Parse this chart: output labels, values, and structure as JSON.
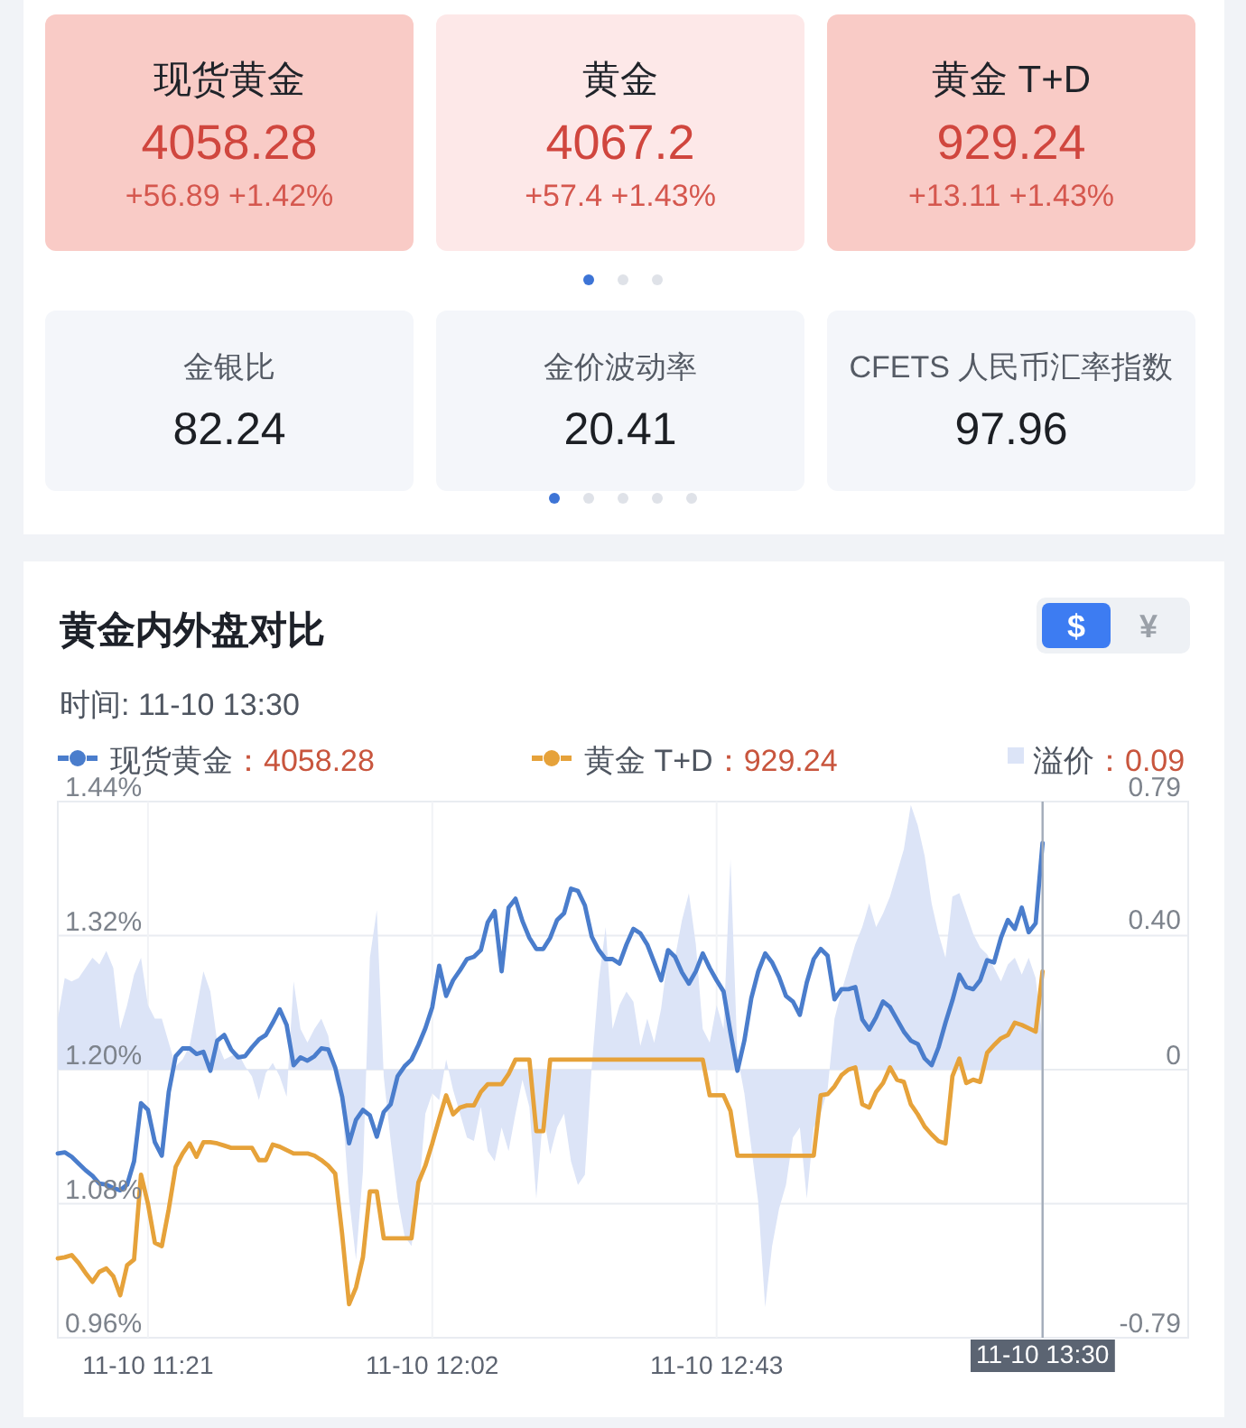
{
  "chart_data": [
    {
      "type": "other",
      "categories": [
        "现货黄金",
        "黄金",
        "黄金 T+D",
        "金银比",
        "金价波动率",
        "CFETS 人民币汇率指数"
      ],
      "values": [
        4058.28,
        4067.2,
        929.24,
        82.24,
        20.41,
        97.96
      ],
      "colors": [
        "#f9cbc6",
        "#fde8e8",
        "#f9cbc6",
        "#f4f6fa",
        "#f4f6fa",
        "#f4f6fa"
      ],
      "data_labels": true,
      "annotations": [
        "+56.89 +1.42%",
        "+57.4 +1.43%",
        "+13.11 +1.43%"
      ]
    },
    {
      "type": "line",
      "title": "黄金内外盘对比",
      "subtitle": "时间: 11-10 13:30",
      "legend": "top",
      "grid": true,
      "categories": [
        null,
        null,
        null,
        null,
        null,
        null,
        null,
        null,
        null,
        null,
        null,
        null,
        null,
        "11-10 11:21",
        null,
        null,
        null,
        null,
        null,
        null,
        null,
        null,
        null,
        null,
        null,
        null,
        null,
        null,
        null,
        null,
        null,
        null,
        null,
        null,
        null,
        null,
        null,
        null,
        null,
        null,
        null,
        null,
        null,
        null,
        null,
        null,
        null,
        null,
        null,
        null,
        null,
        null,
        null,
        null,
        "11-10 12:02",
        null,
        null,
        null,
        null,
        null,
        null,
        null,
        null,
        null,
        null,
        null,
        null,
        null,
        null,
        null,
        null,
        null,
        null,
        null,
        null,
        null,
        null,
        null,
        null,
        null,
        null,
        null,
        null,
        null,
        null,
        null,
        null,
        null,
        null,
        null,
        null,
        null,
        null,
        null,
        null,
        "11-10 12:43",
        null,
        null,
        null,
        null,
        null,
        null,
        null,
        null,
        null,
        null,
        null,
        null,
        null,
        null,
        null,
        null,
        null,
        null,
        null,
        null,
        null,
        null,
        null,
        null,
        null,
        null,
        null,
        null,
        null,
        null,
        null,
        null,
        null,
        null,
        null,
        null,
        null,
        null,
        null,
        null,
        null,
        null,
        null,
        null,
        null,
        null,
        "11-10 13:30",
        null,
        null,
        null,
        null,
        null,
        null,
        null,
        null,
        null,
        null,
        null,
        null,
        null,
        null,
        null,
        null,
        null,
        null,
        null,
        null,
        null
      ],
      "ylim": [
        0.96,
        1.44
      ],
      "yticks": [
        {
          "value": 0.96,
          "label": "0.96%"
        },
        {
          "value": 1.08,
          "label": "1.08%"
        },
        {
          "value": 1.2,
          "label": "1.20%"
        },
        {
          "value": 1.32,
          "label": "1.32%"
        },
        {
          "value": 1.44,
          "label": "1.44%"
        }
      ],
      "y2lim": [
        -0.79,
        0.79
      ],
      "y2ticks": [
        -0.79,
        0,
        {
          "value": 0.4,
          "label": "0.40"
        },
        0.79
      ],
      "ref_lines": [
        {
          "axis": "x",
          "value": "11-10 13:30",
          "color": "#a3acb9"
        }
      ],
      "annotations": [
        "：4058.28",
        "：929.24",
        "：0.09",
        "$",
        "¥"
      ],
      "series": [
        {
          "name": "现货黄金",
          "color": "#4a7dcc",
          "values": [
            1.125,
            1.126,
            1.122,
            1.116,
            1.11,
            1.105,
            1.098,
            1.097,
            1.094,
            1.092,
            1.097,
            1.118,
            1.17,
            1.164,
            1.135,
            1.123,
            1.18,
            1.212,
            1.219,
            1.219,
            1.214,
            1.216,
            1.199,
            1.226,
            1.231,
            1.218,
            1.211,
            1.212,
            1.22,
            1.227,
            1.231,
            1.242,
            1.254,
            1.24,
            1.204,
            1.211,
            1.208,
            1.212,
            1.219,
            1.218,
            1.202,
            1.176,
            1.134,
            1.155,
            1.164,
            1.159,
            1.14,
            1.162,
            1.169,
            1.194,
            1.203,
            1.209,
            1.222,
            1.237,
            1.256,
            1.293,
            1.266,
            1.28,
            1.289,
            1.299,
            1.301,
            1.307,
            1.332,
            1.342,
            1.288,
            1.345,
            1.353,
            1.333,
            1.318,
            1.308,
            1.308,
            1.318,
            1.334,
            1.34,
            1.362,
            1.36,
            1.347,
            1.319,
            1.307,
            1.299,
            1.299,
            1.295,
            1.312,
            1.326,
            1.322,
            1.312,
            1.296,
            1.28,
            1.307,
            1.301,
            1.287,
            1.277,
            1.288,
            1.304,
            1.291,
            1.28,
            1.27,
            1.233,
            1.199,
            1.226,
            1.264,
            1.288,
            1.304,
            1.296,
            1.283,
            1.266,
            1.261,
            1.249,
            1.278,
            1.299,
            1.308,
            1.302,
            1.263,
            1.272,
            1.272,
            1.274,
            1.245,
            1.236,
            1.247,
            1.261,
            1.256,
            1.245,
            1.234,
            1.226,
            1.223,
            1.21,
            1.204,
            1.22,
            1.242,
            1.262,
            1.285,
            1.274,
            1.272,
            1.28,
            1.298,
            1.296,
            1.318,
            1.334,
            1.326,
            1.345,
            1.323,
            1.331,
            1.403,
            null,
            null,
            null,
            null,
            null,
            null,
            null,
            null,
            null,
            null,
            null,
            null,
            null,
            null,
            null,
            null,
            null,
            null,
            null,
            null,
            null
          ]
        },
        {
          "name": "黄金 T+D",
          "color": "#e6a23a",
          "values": [
            1.031,
            1.032,
            1.034,
            1.027,
            1.018,
            1.01,
            1.019,
            1.022,
            1.015,
            0.998,
            1.025,
            1.03,
            1.106,
            1.08,
            1.045,
            1.042,
            1.075,
            1.113,
            1.125,
            1.134,
            1.122,
            1.135,
            1.135,
            1.134,
            1.132,
            1.13,
            1.13,
            1.13,
            1.13,
            1.119,
            1.119,
            1.133,
            1.131,
            1.128,
            1.125,
            1.125,
            1.125,
            1.123,
            1.119,
            1.114,
            1.107,
            1.053,
            0.99,
            1.005,
            1.032,
            1.091,
            1.091,
            1.049,
            1.049,
            1.049,
            1.049,
            1.049,
            1.099,
            1.114,
            1.134,
            1.156,
            1.177,
            1.16,
            1.166,
            1.168,
            1.168,
            1.18,
            1.187,
            1.187,
            1.187,
            1.196,
            1.209,
            1.209,
            1.209,
            1.145,
            1.145,
            1.209,
            1.209,
            1.209,
            1.209,
            1.209,
            1.209,
            1.209,
            1.209,
            1.209,
            1.209,
            1.209,
            1.209,
            1.209,
            1.209,
            1.209,
            1.209,
            1.209,
            1.209,
            1.209,
            1.209,
            1.209,
            1.209,
            1.209,
            1.177,
            1.177,
            1.177,
            1.163,
            1.123,
            1.123,
            1.123,
            1.123,
            1.123,
            1.123,
            1.123,
            1.123,
            1.123,
            1.123,
            1.123,
            1.123,
            1.177,
            1.178,
            1.185,
            1.195,
            1.2,
            1.202,
            1.169,
            1.166,
            1.18,
            1.188,
            1.202,
            1.191,
            1.189,
            1.169,
            1.16,
            1.149,
            1.142,
            1.136,
            1.134,
            1.194,
            1.21,
            1.188,
            1.191,
            1.189,
            1.215,
            1.222,
            1.228,
            1.231,
            1.242,
            1.24,
            1.237,
            1.234,
            1.288,
            null,
            null,
            null,
            null,
            null,
            null,
            null,
            null,
            null,
            null,
            null,
            null,
            null,
            null,
            null,
            null,
            null,
            null,
            null,
            null,
            null
          ]
        },
        {
          "name": "溢价",
          "type": "area",
          "axis": "y2",
          "color": "#dce4f7",
          "values": [
            0.15,
            0.27,
            0.26,
            0.27,
            0.3,
            0.33,
            0.31,
            0.35,
            0.3,
            0.12,
            0.19,
            0.28,
            0.33,
            0.19,
            0.15,
            0.15,
            0.08,
            0.01,
            0.03,
            0.07,
            0.18,
            0.29,
            0.23,
            0.08,
            0.03,
            0.04,
            0.05,
            0.01,
            -0.02,
            -0.09,
            -0.01,
            0.02,
            -0.02,
            -0.08,
            0.26,
            0.12,
            0.08,
            0.12,
            0.15,
            0.1,
            -0.03,
            -0.1,
            -0.38,
            -0.56,
            -0.3,
            0.33,
            0.47,
            -0.02,
            -0.21,
            -0.38,
            -0.49,
            -0.52,
            -0.38,
            -0.13,
            -0.07,
            -0.09,
            0.03,
            -0.06,
            -0.13,
            -0.2,
            -0.21,
            -0.11,
            -0.24,
            -0.27,
            -0.17,
            -0.24,
            -0.13,
            -0.03,
            -0.11,
            -0.38,
            -0.13,
            -0.25,
            -0.17,
            -0.13,
            -0.27,
            -0.34,
            -0.31,
            0.01,
            0.26,
            0.42,
            0.12,
            0.19,
            0.23,
            0.2,
            0.07,
            0.15,
            0.08,
            0.18,
            0.34,
            0.33,
            0.44,
            0.52,
            0.37,
            0.12,
            0.08,
            0.19,
            0.12,
            0.62,
            0.04,
            -0.07,
            -0.23,
            -0.39,
            -0.7,
            -0.52,
            -0.41,
            -0.34,
            -0.2,
            -0.17,
            -0.38,
            -0.17,
            -0.13,
            -0.06,
            0.15,
            0.23,
            0.3,
            0.37,
            0.42,
            0.49,
            0.42,
            0.46,
            0.51,
            0.58,
            0.65,
            0.78,
            0.72,
            0.63,
            0.49,
            0.4,
            0.33,
            0.51,
            0.52,
            0.46,
            0.4,
            0.36,
            0.34,
            0.3,
            0.26,
            0.31,
            0.33,
            0.28,
            0.33,
            0.27,
            0.09,
            null,
            null,
            null,
            null,
            null,
            null,
            null,
            null,
            null,
            null,
            null,
            null,
            null,
            null,
            null,
            null,
            null,
            null,
            null,
            null,
            null
          ]
        }
      ]
    }
  ]
}
